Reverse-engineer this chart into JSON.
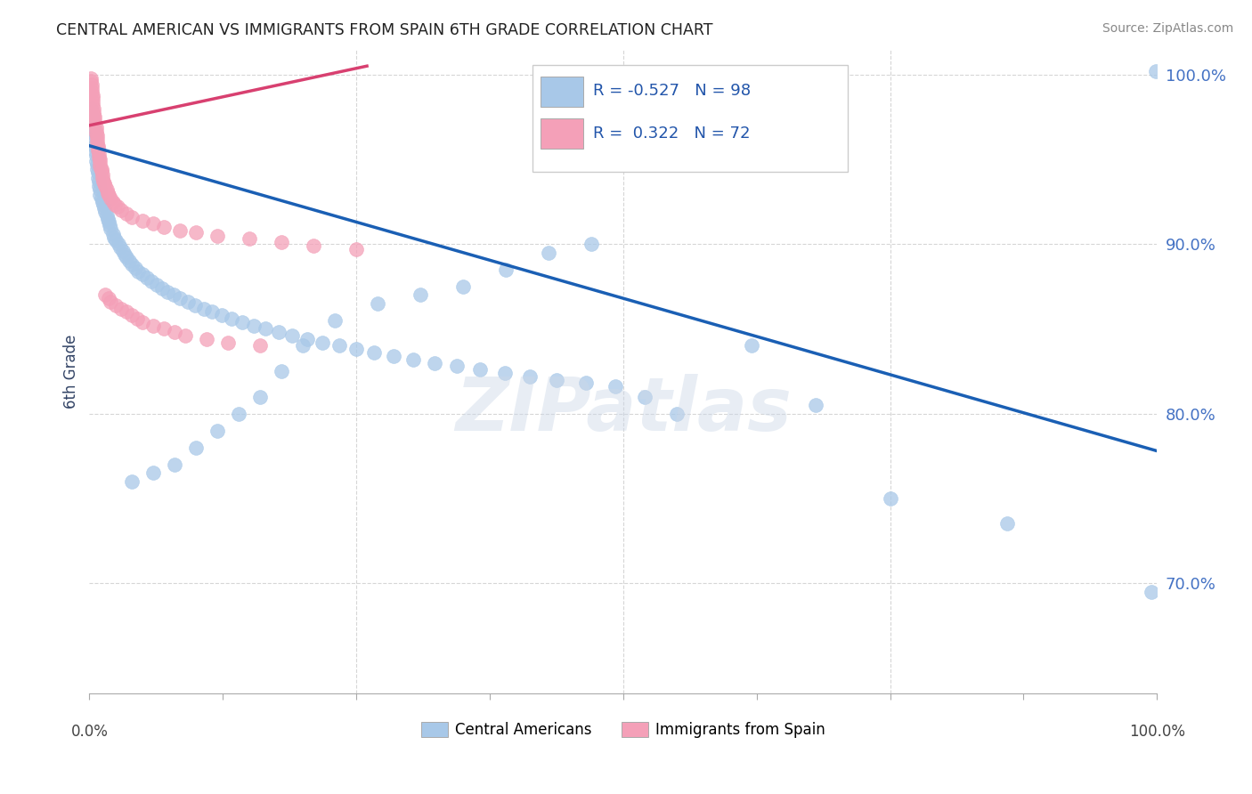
{
  "title": "CENTRAL AMERICAN VS IMMIGRANTS FROM SPAIN 6TH GRADE CORRELATION CHART",
  "source": "Source: ZipAtlas.com",
  "ylabel": "6th Grade",
  "xlim": [
    0,
    1
  ],
  "ylim": [
    0.635,
    1.015
  ],
  "yticks": [
    0.7,
    0.8,
    0.9,
    1.0
  ],
  "ytick_labels": [
    "70.0%",
    "80.0%",
    "90.0%",
    "100.0%"
  ],
  "blue_R": -0.527,
  "blue_N": 98,
  "pink_R": 0.322,
  "pink_N": 72,
  "blue_color": "#a8c8e8",
  "pink_color": "#f4a0b8",
  "blue_line_color": "#1a5fb4",
  "pink_line_color": "#d84070",
  "legend_blue_label": "Central Americans",
  "legend_pink_label": "Immigrants from Spain",
  "blue_trend_x": [
    0.0,
    1.0
  ],
  "blue_trend_y": [
    0.958,
    0.778
  ],
  "pink_trend_x": [
    0.0,
    0.26
  ],
  "pink_trend_y": [
    0.97,
    1.005
  ],
  "blue_scatter_x": [
    0.001,
    0.002,
    0.003,
    0.003,
    0.004,
    0.004,
    0.005,
    0.005,
    0.006,
    0.006,
    0.007,
    0.007,
    0.008,
    0.008,
    0.009,
    0.009,
    0.01,
    0.01,
    0.011,
    0.012,
    0.013,
    0.014,
    0.015,
    0.016,
    0.017,
    0.018,
    0.019,
    0.02,
    0.022,
    0.023,
    0.025,
    0.027,
    0.029,
    0.031,
    0.033,
    0.035,
    0.037,
    0.04,
    0.043,
    0.046,
    0.05,
    0.054,
    0.058,
    0.063,
    0.068,
    0.073,
    0.079,
    0.085,
    0.092,
    0.099,
    0.107,
    0.115,
    0.124,
    0.133,
    0.143,
    0.154,
    0.165,
    0.177,
    0.19,
    0.204,
    0.218,
    0.234,
    0.25,
    0.267,
    0.285,
    0.303,
    0.323,
    0.344,
    0.366,
    0.389,
    0.413,
    0.438,
    0.465,
    0.493,
    0.47,
    0.43,
    0.39,
    0.35,
    0.31,
    0.27,
    0.23,
    0.2,
    0.18,
    0.16,
    0.14,
    0.12,
    0.1,
    0.08,
    0.06,
    0.04,
    0.52,
    0.55,
    0.62,
    0.68,
    0.75,
    0.86,
    0.995,
    0.999
  ],
  "blue_scatter_y": [
    0.98,
    0.975,
    0.972,
    0.968,
    0.965,
    0.961,
    0.958,
    0.955,
    0.952,
    0.949,
    0.947,
    0.944,
    0.942,
    0.939,
    0.937,
    0.934,
    0.932,
    0.929,
    0.927,
    0.925,
    0.923,
    0.921,
    0.919,
    0.917,
    0.915,
    0.913,
    0.911,
    0.909,
    0.906,
    0.904,
    0.902,
    0.9,
    0.898,
    0.896,
    0.894,
    0.892,
    0.89,
    0.888,
    0.886,
    0.884,
    0.882,
    0.88,
    0.878,
    0.876,
    0.874,
    0.872,
    0.87,
    0.868,
    0.866,
    0.864,
    0.862,
    0.86,
    0.858,
    0.856,
    0.854,
    0.852,
    0.85,
    0.848,
    0.846,
    0.844,
    0.842,
    0.84,
    0.838,
    0.836,
    0.834,
    0.832,
    0.83,
    0.828,
    0.826,
    0.824,
    0.822,
    0.82,
    0.818,
    0.816,
    0.9,
    0.895,
    0.885,
    0.875,
    0.87,
    0.865,
    0.855,
    0.84,
    0.825,
    0.81,
    0.8,
    0.79,
    0.78,
    0.77,
    0.765,
    0.76,
    0.81,
    0.8,
    0.84,
    0.805,
    0.75,
    0.735,
    0.695,
    1.002
  ],
  "pink_scatter_x": [
    0.001,
    0.001,
    0.002,
    0.002,
    0.002,
    0.003,
    0.003,
    0.003,
    0.003,
    0.004,
    0.004,
    0.004,
    0.005,
    0.005,
    0.005,
    0.006,
    0.006,
    0.006,
    0.007,
    0.007,
    0.007,
    0.008,
    0.008,
    0.008,
    0.009,
    0.009,
    0.01,
    0.01,
    0.01,
    0.011,
    0.011,
    0.012,
    0.012,
    0.013,
    0.014,
    0.015,
    0.016,
    0.017,
    0.018,
    0.02,
    0.022,
    0.024,
    0.026,
    0.03,
    0.035,
    0.04,
    0.05,
    0.06,
    0.07,
    0.085,
    0.1,
    0.12,
    0.15,
    0.18,
    0.21,
    0.25,
    0.015,
    0.018,
    0.02,
    0.025,
    0.03,
    0.035,
    0.04,
    0.045,
    0.05,
    0.06,
    0.07,
    0.08,
    0.09,
    0.11,
    0.13,
    0.16
  ],
  "pink_scatter_y": [
    0.998,
    0.996,
    0.994,
    0.992,
    0.99,
    0.988,
    0.986,
    0.984,
    0.982,
    0.98,
    0.978,
    0.976,
    0.975,
    0.973,
    0.971,
    0.969,
    0.967,
    0.965,
    0.964,
    0.962,
    0.96,
    0.958,
    0.957,
    0.955,
    0.953,
    0.951,
    0.95,
    0.948,
    0.946,
    0.944,
    0.943,
    0.941,
    0.939,
    0.937,
    0.936,
    0.934,
    0.932,
    0.93,
    0.929,
    0.927,
    0.925,
    0.923,
    0.922,
    0.92,
    0.918,
    0.916,
    0.914,
    0.912,
    0.91,
    0.908,
    0.907,
    0.905,
    0.903,
    0.901,
    0.899,
    0.897,
    0.87,
    0.868,
    0.866,
    0.864,
    0.862,
    0.86,
    0.858,
    0.856,
    0.854,
    0.852,
    0.85,
    0.848,
    0.846,
    0.844,
    0.842,
    0.84
  ]
}
